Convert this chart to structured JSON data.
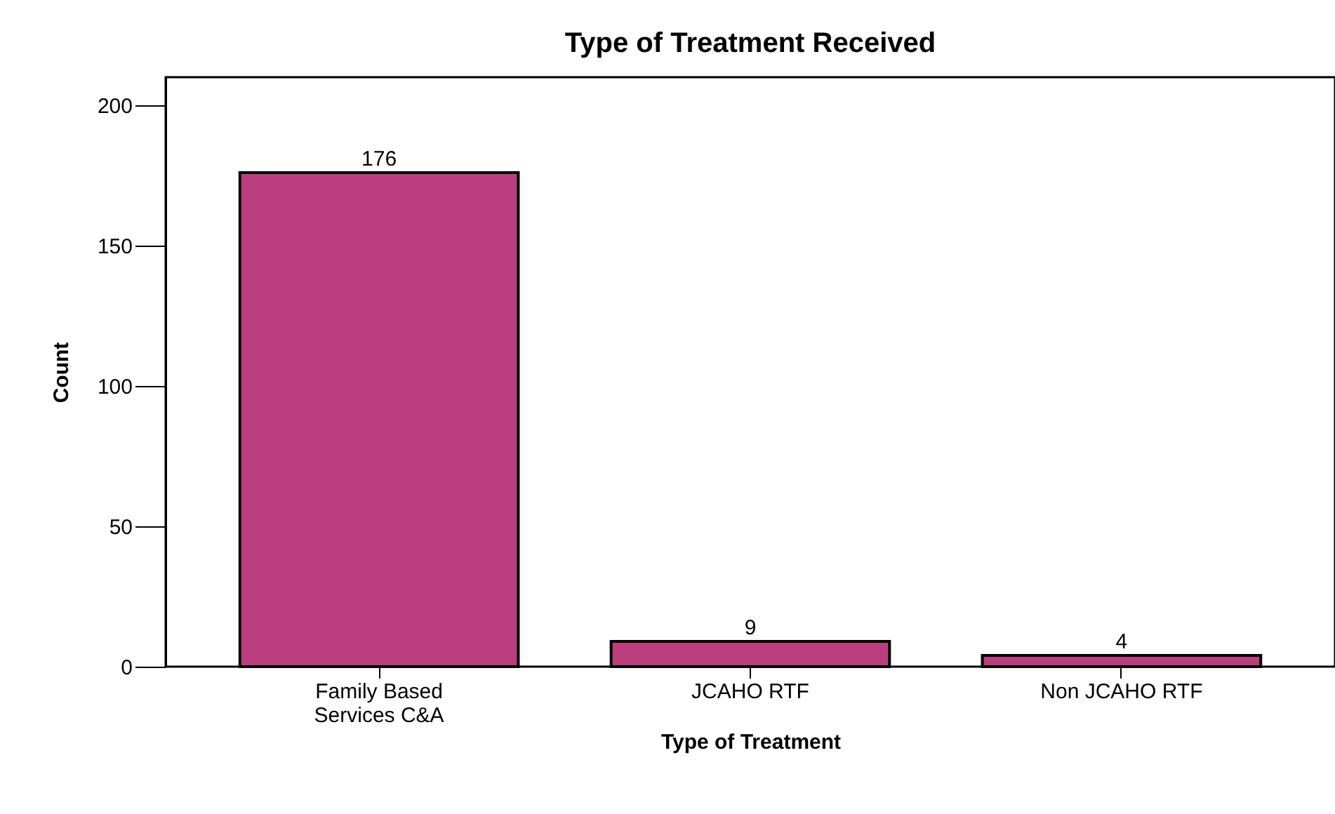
{
  "chart_data": {
    "type": "bar",
    "title": "Type of Treatment Received",
    "xlabel": "Type of Treatment",
    "ylabel": "Count",
    "categories": [
      "Family Based Services C&A",
      "JCAHO RTF",
      "Non JCAHO RTF"
    ],
    "values": [
      176,
      9,
      4
    ],
    "color": "#bb3f7e",
    "data_labels": true,
    "ylim": [
      0,
      210
    ],
    "yticks": [
      0,
      50,
      100,
      150,
      200
    ],
    "grid": false
  }
}
